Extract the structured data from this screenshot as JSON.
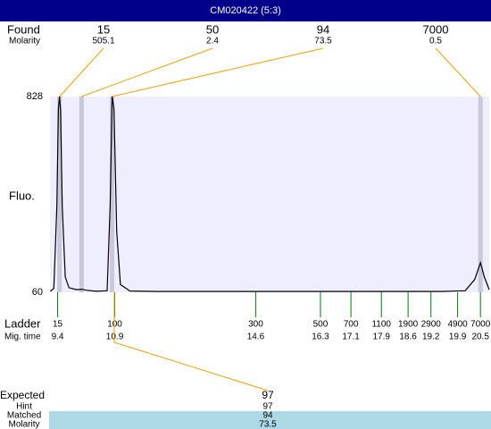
{
  "chart_data": {
    "type": "line",
    "title": "CM020422 (5:3)",
    "ylabel": "Fluo.",
    "found_label": "Found",
    "molarity_label": "Molarity",
    "ladder_label": "Ladder",
    "time_label": "Mig. time",
    "color": "#000000",
    "background": "#eeeeff",
    "xlim": [
      9.2,
      20.73
    ],
    "ylim": [
      60,
      828
    ],
    "yticks": [
      60,
      828
    ],
    "x": [
      9.21,
      9.3,
      9.38,
      9.42,
      9.45,
      9.48,
      9.52,
      9.6,
      9.7,
      9.9,
      10.03,
      10.15,
      10.4,
      10.7,
      10.78,
      10.83,
      10.88,
      10.95,
      11.05,
      11.3,
      12,
      14,
      16,
      18,
      19.5,
      20.1,
      20.35,
      20.5,
      20.6,
      20.73
    ],
    "values": [
      64,
      75,
      400,
      780,
      828,
      770,
      400,
      120,
      78,
      70,
      72,
      68,
      64,
      66,
      400,
      828,
      780,
      300,
      90,
      65,
      63,
      63,
      63,
      63,
      63,
      66,
      110,
      176,
      120,
      70
    ],
    "found": [
      {
        "size": 15,
        "molarity": 505.1,
        "time": 9.45
      },
      {
        "size": 50,
        "molarity": 2.4,
        "time": 10.03
      },
      {
        "size": 94,
        "molarity": 73.5,
        "time": 10.83
      },
      {
        "size": 7000,
        "molarity": 0.5,
        "time": 20.5
      }
    ],
    "ladder": {
      "sizes": [
        15,
        100,
        300,
        500,
        700,
        1100,
        1900,
        2900,
        4900,
        7000
      ],
      "times": [
        9.4,
        10.9,
        14.6,
        16.3,
        17.1,
        17.9,
        18.6,
        19.2,
        19.9,
        20.5
      ]
    },
    "expected": {
      "label": "Expected",
      "value": 97,
      "rows": [
        {
          "label": "Hint",
          "value": 97
        },
        {
          "label": "Matched",
          "value": 94
        },
        {
          "label": "Molarity",
          "value": 73.5
        }
      ]
    }
  }
}
